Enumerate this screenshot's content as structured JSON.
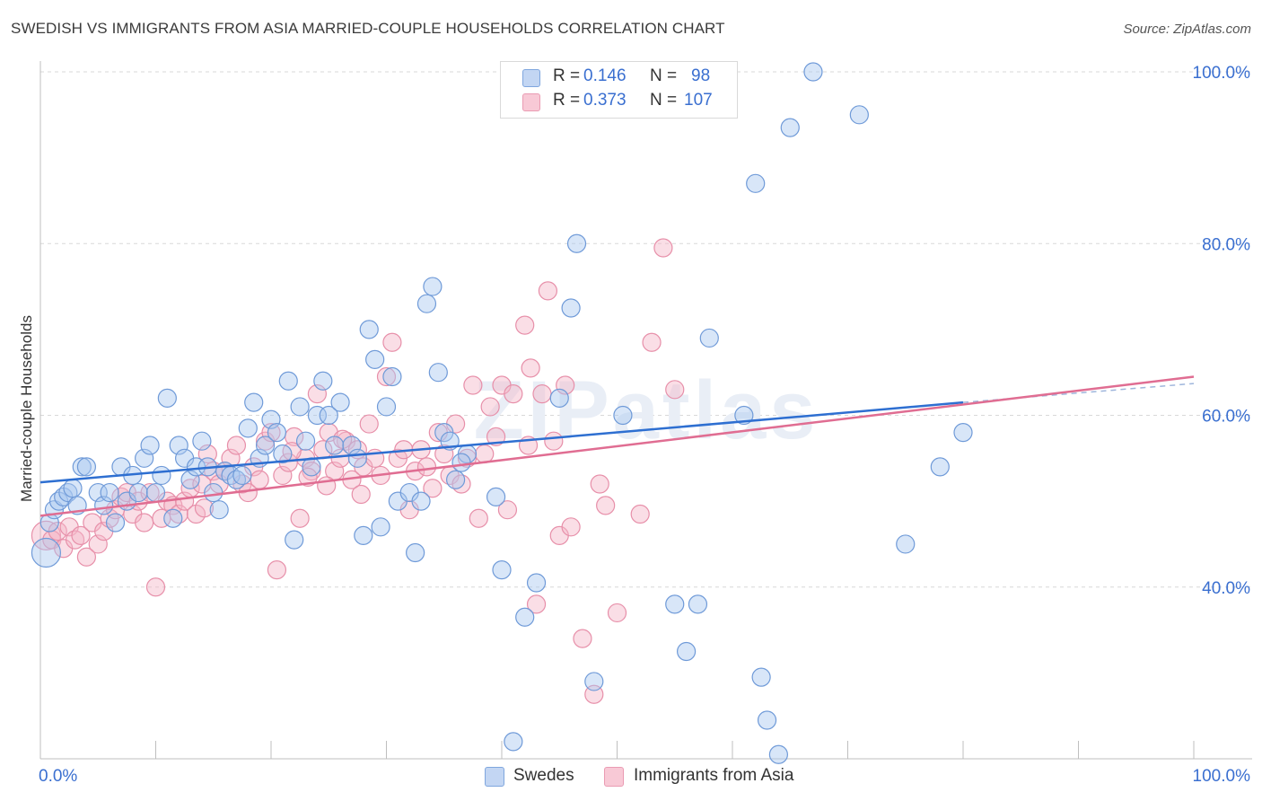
{
  "title": "SWEDISH VS IMMIGRANTS FROM ASIA MARRIED-COUPLE HOUSEHOLDS CORRELATION CHART",
  "source": "Source: ZipAtlas.com",
  "watermark": "ZIPatlas",
  "colors": {
    "blue_fill": "#a9c7ef",
    "blue_stroke": "#6f9ad8",
    "blue_line": "#2e6fd1",
    "pink_fill": "#f5b6c8",
    "pink_stroke": "#e78fa9",
    "pink_line": "#e06d92",
    "axis_label": "#3a6fd0"
  },
  "legend": {
    "r_label": "R =",
    "n_label": "N =",
    "rows": [
      {
        "r": "0.146",
        "n": "98",
        "color": "#a9c7ef"
      },
      {
        "r": "0.373",
        "n": "107",
        "color": "#f5b6c8"
      }
    ]
  },
  "bottom_legend": [
    {
      "label": "Swedes",
      "color": "#a9c7ef"
    },
    {
      "label": "Immigrants from Asia",
      "color": "#f5b6c8"
    }
  ],
  "chart_data": {
    "type": "scatter",
    "title": "SWEDISH VS IMMIGRANTS FROM ASIA MARRIED-COUPLE HOUSEHOLDS CORRELATION CHART",
    "xlabel": "",
    "ylabel": "Married-couple Households",
    "xlim": [
      0,
      100
    ],
    "ylim": [
      20,
      100
    ],
    "x_tick_labels": [
      "0.0%",
      "100.0%"
    ],
    "y_ticks": [
      40,
      60,
      80,
      100
    ],
    "y_tick_labels": [
      "40.0%",
      "60.0%",
      "80.0%",
      "100.0%"
    ],
    "grid": true,
    "legend_position": "top-center",
    "series": [
      {
        "name": "Swedes",
        "r": 0.146,
        "n": 98,
        "trend": {
          "x": [
            0,
            80
          ],
          "y": [
            52.2,
            61.5
          ],
          "dashed_to": [
            100,
            63.7
          ]
        },
        "points": [
          [
            0.5,
            44.0
          ],
          [
            0.8,
            47.5
          ],
          [
            1.2,
            49.0
          ],
          [
            1.6,
            50.0
          ],
          [
            2.0,
            50.5
          ],
          [
            2.4,
            51.0
          ],
          [
            2.8,
            51.5
          ],
          [
            3.2,
            49.5
          ],
          [
            3.6,
            54.0
          ],
          [
            4.0,
            54.0
          ],
          [
            5.0,
            51.0
          ],
          [
            5.5,
            49.5
          ],
          [
            6.0,
            51.0
          ],
          [
            6.5,
            47.5
          ],
          [
            7.0,
            54.0
          ],
          [
            7.5,
            50.0
          ],
          [
            8.0,
            53.0
          ],
          [
            8.5,
            51.0
          ],
          [
            9.0,
            55.0
          ],
          [
            9.5,
            56.5
          ],
          [
            10.0,
            51.0
          ],
          [
            10.5,
            53.0
          ],
          [
            11.0,
            62.0
          ],
          [
            11.5,
            48.0
          ],
          [
            12.0,
            56.5
          ],
          [
            12.5,
            55.0
          ],
          [
            13.0,
            52.5
          ],
          [
            13.5,
            54.0
          ],
          [
            14.0,
            57.0
          ],
          [
            14.5,
            54.0
          ],
          [
            15.0,
            51.0
          ],
          [
            15.5,
            49.0
          ],
          [
            16.0,
            53.5
          ],
          [
            16.5,
            53.0
          ],
          [
            17.0,
            52.5
          ],
          [
            17.5,
            53.0
          ],
          [
            18.0,
            58.5
          ],
          [
            18.5,
            61.5
          ],
          [
            19.0,
            55.0
          ],
          [
            19.5,
            56.5
          ],
          [
            20.0,
            59.5
          ],
          [
            20.5,
            58.0
          ],
          [
            21.0,
            55.5
          ],
          [
            21.5,
            64.0
          ],
          [
            22.0,
            45.5
          ],
          [
            22.5,
            61.0
          ],
          [
            23.0,
            57.0
          ],
          [
            23.5,
            54.0
          ],
          [
            24.0,
            60.0
          ],
          [
            24.5,
            64.0
          ],
          [
            25.0,
            60.0
          ],
          [
            25.5,
            56.5
          ],
          [
            26.0,
            61.5
          ],
          [
            27.0,
            56.5
          ],
          [
            27.5,
            55.0
          ],
          [
            28.0,
            46.0
          ],
          [
            28.5,
            70.0
          ],
          [
            29.0,
            66.5
          ],
          [
            29.5,
            47.0
          ],
          [
            30.0,
            61.0
          ],
          [
            30.5,
            64.5
          ],
          [
            31.0,
            50.0
          ],
          [
            32.0,
            51.0
          ],
          [
            32.5,
            44.0
          ],
          [
            33.0,
            50.0
          ],
          [
            33.5,
            73.0
          ],
          [
            34.0,
            75.0
          ],
          [
            34.5,
            65.0
          ],
          [
            35.0,
            58.0
          ],
          [
            35.5,
            57.0
          ],
          [
            36.0,
            52.5
          ],
          [
            37.0,
            55.5
          ],
          [
            39.5,
            50.5
          ],
          [
            40.0,
            42.0
          ],
          [
            41.0,
            22.0
          ],
          [
            42.0,
            36.5
          ],
          [
            43.0,
            40.5
          ],
          [
            45.0,
            62.0
          ],
          [
            46.0,
            72.5
          ],
          [
            46.5,
            80.0
          ],
          [
            48.0,
            29.0
          ],
          [
            50.5,
            60.0
          ],
          [
            55.0,
            38.0
          ],
          [
            56.0,
            32.5
          ],
          [
            57.0,
            38.0
          ],
          [
            58.0,
            69.0
          ],
          [
            61.0,
            60.0
          ],
          [
            62.0,
            87.0
          ],
          [
            62.5,
            29.5
          ],
          [
            63.0,
            24.5
          ],
          [
            64.0,
            20.5
          ],
          [
            65.0,
            93.5
          ],
          [
            67.0,
            100.0
          ],
          [
            71.0,
            95.0
          ],
          [
            75.0,
            45.0
          ],
          [
            78.0,
            54.0
          ],
          [
            80.0,
            58.0
          ],
          [
            36.5,
            54.5
          ]
        ]
      },
      {
        "name": "Immigrants from Asia",
        "r": 0.373,
        "n": 107,
        "trend": {
          "x": [
            0,
            100
          ],
          "y": [
            48.3,
            64.5
          ]
        },
        "points": [
          [
            0.5,
            46.0
          ],
          [
            1.0,
            45.5
          ],
          [
            1.5,
            46.5
          ],
          [
            2.0,
            44.5
          ],
          [
            2.5,
            47.0
          ],
          [
            3.0,
            45.5
          ],
          [
            3.5,
            46.0
          ],
          [
            4.0,
            43.5
          ],
          [
            4.5,
            47.5
          ],
          [
            5.0,
            45.0
          ],
          [
            5.5,
            46.5
          ],
          [
            6.0,
            48.0
          ],
          [
            6.5,
            49.0
          ],
          [
            7.0,
            50.5
          ],
          [
            7.5,
            51.0
          ],
          [
            8.0,
            48.5
          ],
          [
            8.5,
            50.0
          ],
          [
            9.0,
            47.5
          ],
          [
            9.5,
            51.0
          ],
          [
            10.0,
            40.0
          ],
          [
            10.5,
            48.0
          ],
          [
            11.0,
            50.0
          ],
          [
            11.5,
            49.5
          ],
          [
            12.0,
            48.5
          ],
          [
            12.5,
            50.0
          ],
          [
            13.0,
            51.5
          ],
          [
            13.5,
            48.5
          ],
          [
            14.0,
            52.0
          ],
          [
            14.5,
            55.5
          ],
          [
            15.0,
            53.5
          ],
          [
            15.5,
            52.0
          ],
          [
            16.0,
            53.5
          ],
          [
            16.5,
            55.0
          ],
          [
            17.0,
            56.5
          ],
          [
            17.5,
            52.0
          ],
          [
            18.0,
            51.0
          ],
          [
            18.5,
            54.0
          ],
          [
            19.0,
            52.5
          ],
          [
            19.5,
            57.0
          ],
          [
            20.0,
            58.0
          ],
          [
            20.5,
            42.0
          ],
          [
            21.0,
            53.0
          ],
          [
            21.5,
            54.5
          ],
          [
            22.0,
            57.5
          ],
          [
            22.5,
            48.0
          ],
          [
            23.0,
            55.0
          ],
          [
            23.5,
            53.5
          ],
          [
            24.0,
            62.5
          ],
          [
            24.5,
            56.0
          ],
          [
            25.0,
            58.0
          ],
          [
            25.5,
            53.5
          ],
          [
            26.0,
            55.0
          ],
          [
            26.5,
            57.0
          ],
          [
            27.0,
            52.5
          ],
          [
            27.5,
            56.0
          ],
          [
            28.0,
            54.0
          ],
          [
            28.5,
            59.0
          ],
          [
            29.0,
            55.0
          ],
          [
            29.5,
            53.0
          ],
          [
            30.0,
            64.5
          ],
          [
            30.5,
            68.5
          ],
          [
            31.0,
            55.0
          ],
          [
            31.5,
            56.0
          ],
          [
            32.0,
            49.0
          ],
          [
            32.5,
            53.5
          ],
          [
            33.0,
            56.0
          ],
          [
            33.5,
            54.0
          ],
          [
            34.0,
            51.5
          ],
          [
            34.5,
            58.0
          ],
          [
            35.0,
            55.5
          ],
          [
            35.5,
            53.0
          ],
          [
            36.0,
            59.0
          ],
          [
            36.5,
            52.0
          ],
          [
            37.0,
            55.0
          ],
          [
            37.5,
            63.5
          ],
          [
            38.0,
            48.0
          ],
          [
            38.5,
            55.5
          ],
          [
            39.0,
            61.0
          ],
          [
            39.5,
            57.5
          ],
          [
            40.0,
            63.5
          ],
          [
            40.5,
            49.0
          ],
          [
            41.0,
            62.5
          ],
          [
            42.0,
            70.5
          ],
          [
            42.5,
            65.5
          ],
          [
            43.0,
            38.0
          ],
          [
            43.5,
            62.5
          ],
          [
            44.0,
            74.5
          ],
          [
            44.5,
            57.0
          ],
          [
            45.0,
            46.0
          ],
          [
            45.5,
            63.5
          ],
          [
            46.0,
            47.0
          ],
          [
            47.0,
            34.0
          ],
          [
            48.0,
            27.5
          ],
          [
            49.0,
            49.5
          ],
          [
            50.0,
            37.0
          ],
          [
            52.0,
            48.5
          ],
          [
            53.0,
            68.5
          ],
          [
            54.0,
            79.5
          ],
          [
            55.0,
            63.0
          ],
          [
            48.5,
            52.0
          ],
          [
            26.2,
            57.2
          ],
          [
            23.2,
            52.8
          ],
          [
            42.3,
            56.5
          ],
          [
            27.8,
            50.8
          ],
          [
            24.8,
            51.8
          ],
          [
            21.8,
            55.8
          ],
          [
            14.2,
            49.2
          ]
        ]
      }
    ]
  }
}
